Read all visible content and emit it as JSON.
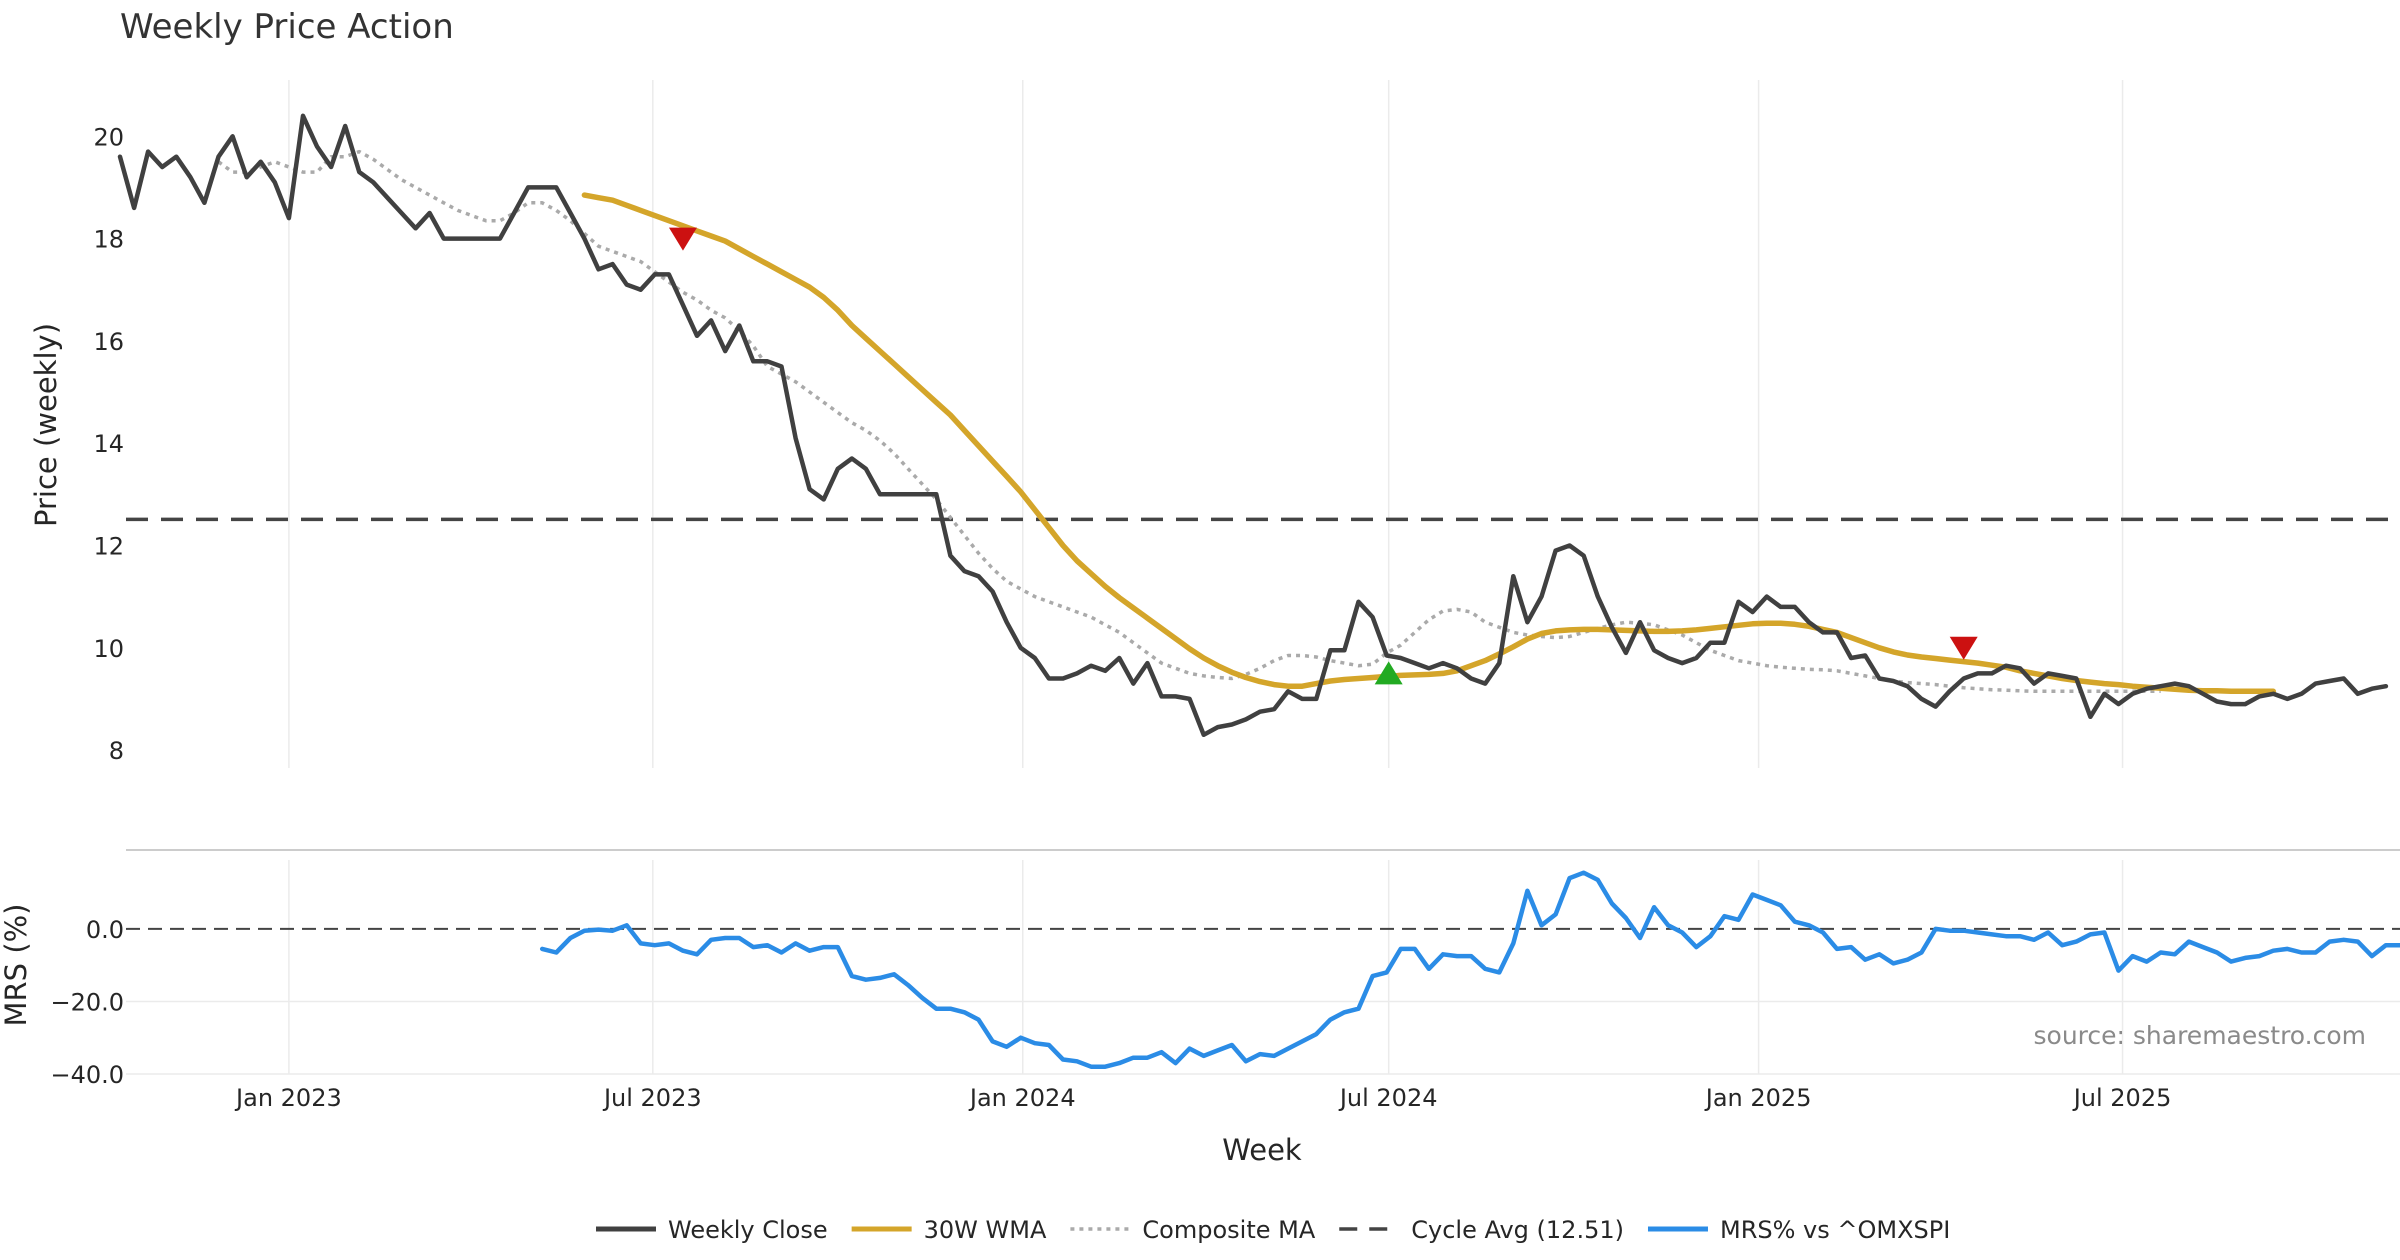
{
  "chart_data": {
    "type": "line",
    "title": "Weekly Price Action",
    "xlabel": "Week",
    "x_tick_labels": [
      "Jan 2023",
      "Jul 2023",
      "Jan 2024",
      "Jul 2024",
      "Jan 2025",
      "Jul 2025"
    ],
    "x_tick_dates": [
      "2023-01-01",
      "2023-07-01",
      "2024-01-01",
      "2024-07-01",
      "2025-01-01",
      "2025-07-01"
    ],
    "x_range": [
      "2022-10-09",
      "2025-11-16"
    ],
    "grid": true,
    "legend_position": "bottom",
    "source": "source: sharemaestro.com",
    "price_panel": {
      "ylabel": "Price (weekly)",
      "yticks": [
        8,
        10,
        12,
        14,
        16,
        18,
        20
      ],
      "ylim": [
        7.65,
        21.1
      ],
      "cycle_avg": 12.51
    },
    "mrs_panel": {
      "ylabel": "MRS (%)",
      "yticks": [
        -40,
        -20,
        0
      ],
      "ytick_labels": [
        "−40.0",
        "−20.0",
        "0.0"
      ],
      "ylim": [
        -40,
        19
      ],
      "zero_line": 0
    },
    "markers": [
      {
        "type": "sell",
        "date": "2023-07-16",
        "value": 18.0,
        "color": "#cc1111"
      },
      {
        "type": "buy",
        "date": "2024-07-01",
        "value": 9.5,
        "color": "#22aa22"
      },
      {
        "type": "sell",
        "date": "2025-04-13",
        "value": 10.0,
        "color": "#cc1111"
      }
    ],
    "series": [
      {
        "name": "Weekly Close",
        "panel": "price",
        "color": "#404040",
        "style": "solid",
        "start": "2022-10-09",
        "values": [
          19.6,
          18.6,
          19.7,
          19.4,
          19.6,
          19.2,
          18.7,
          19.6,
          20.0,
          19.2,
          19.5,
          19.1,
          18.4,
          20.4,
          19.8,
          19.4,
          20.2,
          19.3,
          19.1,
          18.8,
          18.5,
          18.2,
          18.5,
          18.0,
          18.0,
          18.0,
          18.0,
          18.0,
          18.5,
          19.0,
          19.0,
          19.0,
          18.5,
          18.0,
          17.4,
          17.5,
          17.1,
          17.0,
          17.3,
          17.3,
          16.7,
          16.1,
          16.4,
          15.8,
          16.3,
          15.6,
          15.6,
          15.5,
          14.1,
          13.1,
          12.9,
          13.5,
          13.7,
          13.5,
          13.0,
          13.0,
          13.0,
          13.0,
          13.0,
          11.8,
          11.5,
          11.4,
          11.1,
          10.5,
          10.0,
          9.8,
          9.4,
          9.4,
          9.5,
          9.65,
          9.55,
          9.8,
          9.3,
          9.7,
          9.05,
          9.05,
          9.0,
          8.3,
          8.45,
          8.5,
          8.6,
          8.75,
          8.8,
          9.15,
          9.0,
          9.0,
          9.95,
          9.95,
          10.9,
          10.6,
          9.85,
          9.8,
          9.7,
          9.6,
          9.7,
          9.6,
          9.4,
          9.3,
          9.7,
          11.4,
          10.5,
          11.0,
          11.9,
          12.0,
          11.8,
          11.0,
          10.4,
          9.9,
          10.5,
          9.95,
          9.8,
          9.7,
          9.8,
          10.1,
          10.1,
          10.9,
          10.7,
          11.0,
          10.8,
          10.8,
          10.5,
          10.3,
          10.3,
          9.8,
          9.85,
          9.4,
          9.35,
          9.25,
          9.0,
          8.85,
          9.15,
          9.4,
          9.5,
          9.5,
          9.65,
          9.6,
          9.3,
          9.5,
          9.45,
          9.4,
          8.65,
          9.1,
          8.9,
          9.1,
          9.2,
          9.25,
          9.3,
          9.25,
          9.1,
          8.95,
          8.9,
          8.9,
          9.05,
          9.1,
          9.0,
          9.1,
          9.3,
          9.35,
          9.4,
          9.1,
          9.2,
          9.25
        ]
      },
      {
        "name": "30W WMA",
        "panel": "price",
        "color": "#d4a52a",
        "style": "solid",
        "start": "2023-05-28",
        "values": [
          18.85,
          18.8,
          18.75,
          18.65,
          18.55,
          18.45,
          18.35,
          18.25,
          18.15,
          18.05,
          17.95,
          17.8,
          17.65,
          17.5,
          17.35,
          17.2,
          17.05,
          16.85,
          16.6,
          16.3,
          16.05,
          15.8,
          15.55,
          15.3,
          15.05,
          14.8,
          14.55,
          14.25,
          13.95,
          13.65,
          13.35,
          13.05,
          12.7,
          12.35,
          12.0,
          11.7,
          11.45,
          11.2,
          10.98,
          10.78,
          10.58,
          10.38,
          10.18,
          9.98,
          9.8,
          9.65,
          9.52,
          9.42,
          9.34,
          9.28,
          9.25,
          9.25,
          9.3,
          9.35,
          9.38,
          9.4,
          9.42,
          9.44,
          9.46,
          9.47,
          9.48,
          9.5,
          9.55,
          9.65,
          9.75,
          9.88,
          10.02,
          10.17,
          10.28,
          10.33,
          10.35,
          10.36,
          10.36,
          10.35,
          10.34,
          10.33,
          10.32,
          10.32,
          10.33,
          10.35,
          10.38,
          10.41,
          10.44,
          10.47,
          10.48,
          10.48,
          10.46,
          10.42,
          10.36,
          10.3,
          10.2,
          10.1,
          10.0,
          9.92,
          9.86,
          9.82,
          9.79,
          9.76,
          9.73,
          9.7,
          9.66,
          9.62,
          9.55,
          9.5,
          9.45,
          9.4,
          9.36,
          9.33,
          9.3,
          9.28,
          9.25,
          9.23,
          9.21,
          9.19,
          9.17,
          9.16,
          9.16,
          9.15,
          9.15,
          9.15,
          9.15
        ]
      },
      {
        "name": "Composite MA",
        "panel": "price",
        "color": "#aaaaaa",
        "style": "dotted",
        "start": "2022-11-27",
        "values": [
          19.5,
          19.3,
          19.3,
          19.4,
          19.5,
          19.4,
          19.3,
          19.3,
          19.6,
          19.6,
          19.7,
          19.55,
          19.35,
          19.15,
          19.0,
          18.85,
          18.7,
          18.55,
          18.45,
          18.35,
          18.35,
          18.5,
          18.7,
          18.7,
          18.55,
          18.35,
          18.1,
          17.85,
          17.75,
          17.65,
          17.55,
          17.35,
          17.15,
          16.95,
          16.8,
          16.6,
          16.45,
          16.2,
          15.9,
          15.5,
          15.35,
          15.2,
          15.0,
          14.8,
          14.6,
          14.4,
          14.25,
          14.05,
          13.8,
          13.5,
          13.2,
          12.9,
          12.55,
          12.2,
          11.85,
          11.55,
          11.3,
          11.15,
          11.0,
          10.9,
          10.8,
          10.7,
          10.6,
          10.45,
          10.3,
          10.1,
          9.9,
          9.7,
          9.6,
          9.5,
          9.45,
          9.42,
          9.4,
          9.48,
          9.6,
          9.75,
          9.85,
          9.85,
          9.82,
          9.75,
          9.7,
          9.65,
          9.68,
          9.9,
          10.05,
          10.3,
          10.55,
          10.72,
          10.75,
          10.7,
          10.5,
          10.4,
          10.3,
          10.25,
          10.22,
          10.2,
          10.22,
          10.3,
          10.38,
          10.45,
          10.5,
          10.48,
          10.45,
          10.35,
          10.25,
          10.1,
          9.95,
          9.85,
          9.75,
          9.7,
          9.65,
          9.62,
          9.6,
          9.58,
          9.57,
          9.55,
          9.5,
          9.45,
          9.4,
          9.35,
          9.32,
          9.3,
          9.28,
          9.25,
          9.22,
          9.2,
          9.18,
          9.17,
          9.16,
          9.15,
          9.15,
          9.15,
          9.15,
          9.15,
          9.15,
          9.15,
          9.15,
          9.15,
          9.15
        ]
      },
      {
        "name": "Cycle Avg (12.51)",
        "panel": "price",
        "color": "#444444",
        "style": "dashed",
        "constant": 12.51
      },
      {
        "name": "MRS% vs ^OMXSPI",
        "panel": "mrs",
        "color": "#2b8ce6",
        "style": "solid",
        "start": "2023-05-07",
        "values": [
          -5.5,
          -6.5,
          -2.5,
          -0.5,
          -0.2,
          -0.5,
          1.0,
          -4.0,
          -4.5,
          -4.0,
          -6.0,
          -7.0,
          -3.0,
          -2.5,
          -2.5,
          -5.0,
          -4.5,
          -6.5,
          -4.0,
          -6.0,
          -5.0,
          -5.0,
          -13.0,
          -14.0,
          -13.5,
          -12.5,
          -15.5,
          -19.0,
          -22.0,
          -22.0,
          -23.0,
          -25.0,
          -31.0,
          -32.5,
          -30.0,
          -31.5,
          -32.0,
          -36.0,
          -36.5,
          -38.0,
          -38.0,
          -37.0,
          -35.5,
          -35.5,
          -34.0,
          -37.0,
          -33.0,
          -35.0,
          -33.5,
          -32.0,
          -36.5,
          -34.5,
          -35.0,
          -33.0,
          -31.0,
          -29.0,
          -25.0,
          -23.0,
          -22.0,
          -13.0,
          -12.0,
          -5.5,
          -5.5,
          -11.0,
          -7.0,
          -7.5,
          -7.5,
          -11.0,
          -12.0,
          -4.0,
          10.5,
          1.0,
          4.0,
          14.0,
          15.5,
          13.5,
          7.0,
          3.0,
          -2.5,
          6.0,
          1.0,
          -1.0,
          -5.0,
          -2.0,
          3.5,
          2.5,
          9.5,
          8.0,
          6.5,
          2.0,
          1.0,
          -1.0,
          -5.5,
          -5.0,
          -8.5,
          -7.0,
          -9.5,
          -8.5,
          -6.5,
          0.0,
          -0.5,
          -0.5,
          -1.0,
          -1.5,
          -2.0,
          -2.0,
          -3.0,
          -1.0,
          -4.5,
          -3.5,
          -1.5,
          -1.0,
          -11.5,
          -7.5,
          -9.0,
          -6.5,
          -7.0,
          -3.5,
          -5.0,
          -6.5,
          -9.0,
          -8.0,
          -7.5,
          -6.0,
          -5.5,
          -6.5,
          -6.5,
          -3.5,
          -3.0,
          -3.5,
          -7.5,
          -4.5,
          -4.5
        ]
      }
    ]
  }
}
